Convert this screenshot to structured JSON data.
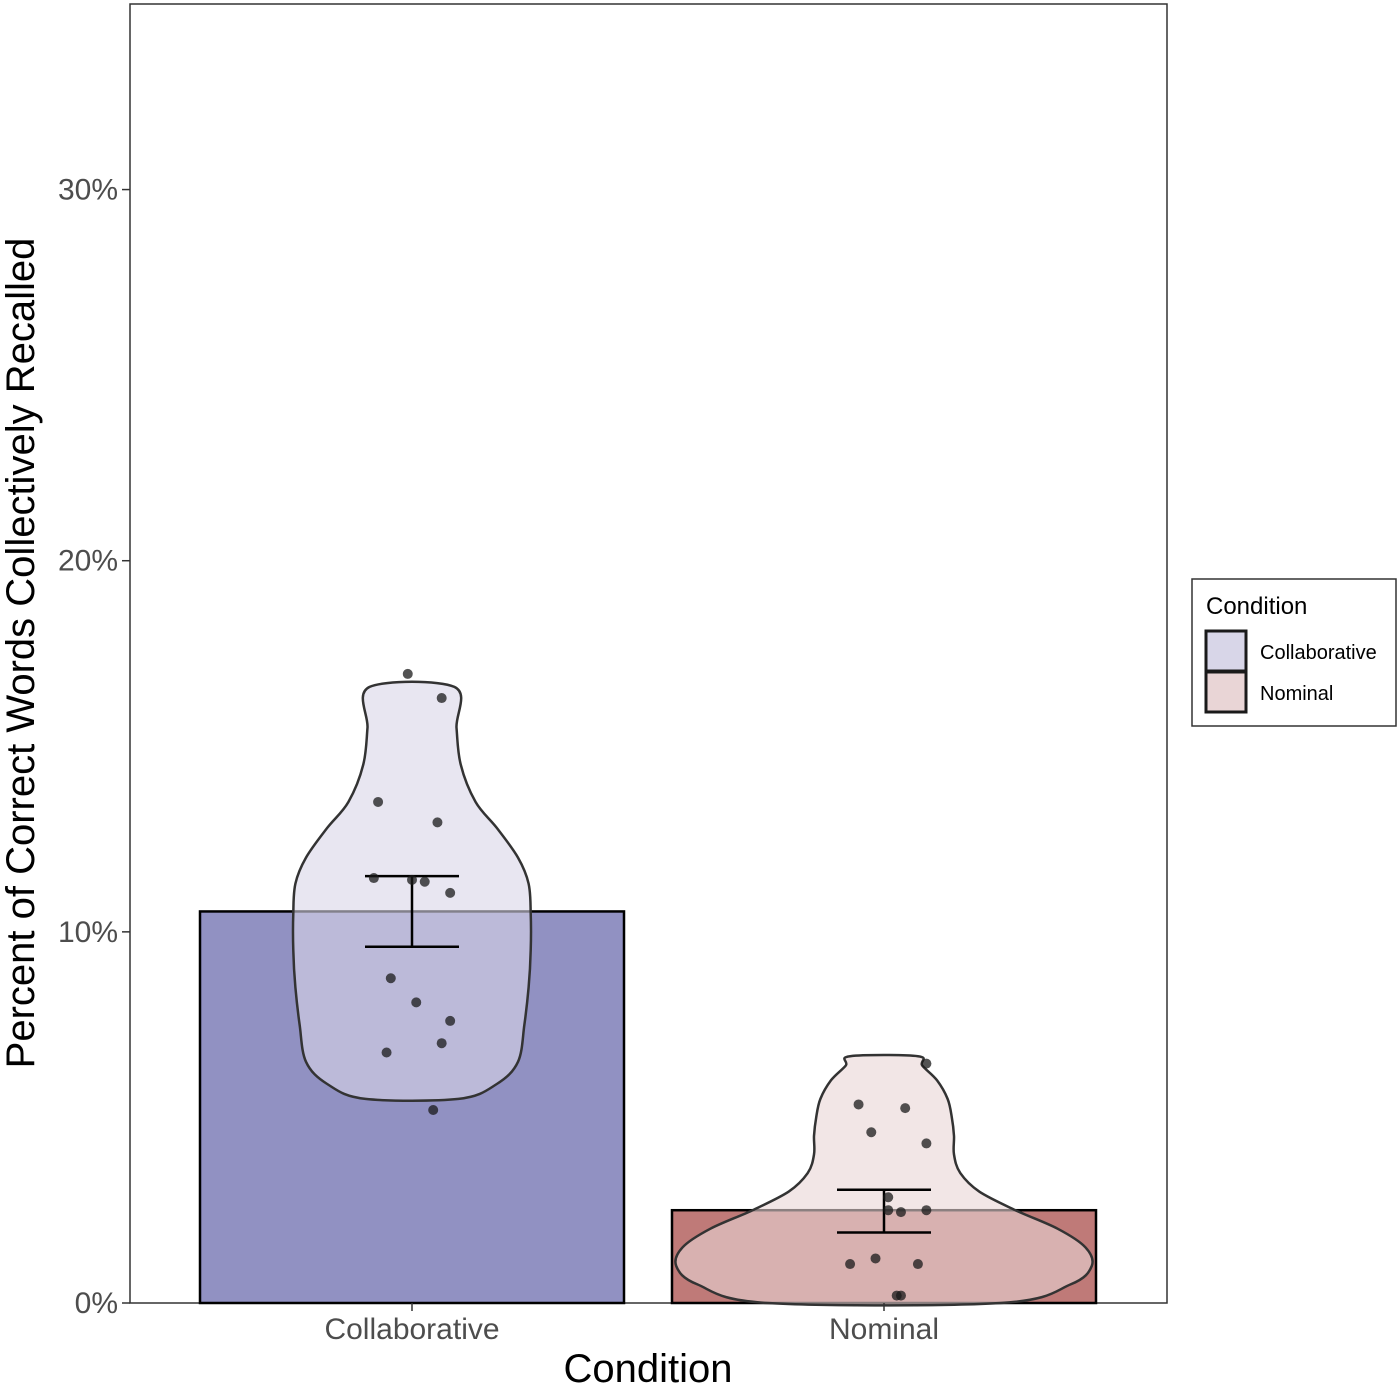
{
  "chart_data": {
    "type": "bar",
    "title": "",
    "xlabel": "Condition",
    "ylabel": "Percent of Correct Words Collectively Recalled",
    "categories": [
      "Collaborative",
      "Nominal"
    ],
    "yticks": [
      "0%",
      "10%",
      "20%",
      "30%"
    ],
    "ytick_values": [
      0,
      10,
      20,
      30
    ],
    "ylim": [
      0,
      35
    ],
    "grid": false,
    "bars": [
      {
        "category": "Collaborative",
        "mean": 10.55,
        "se_low": 9.6,
        "se_high": 11.5,
        "fill": "#9191c2"
      },
      {
        "category": "Nominal",
        "mean": 2.5,
        "se_low": 1.9,
        "se_high": 3.05,
        "fill": "#bf7a78"
      }
    ],
    "violins": [
      {
        "category": "Collaborative",
        "fill": "#d8d6e8",
        "profile": [
          [
            5.5,
            0.22
          ],
          [
            5.9,
            0.4
          ],
          [
            6.5,
            0.5
          ],
          [
            7.5,
            0.53
          ],
          [
            8.5,
            0.55
          ],
          [
            9.5,
            0.56
          ],
          [
            10.5,
            0.56
          ],
          [
            11.3,
            0.55
          ],
          [
            12.0,
            0.5
          ],
          [
            12.8,
            0.4
          ],
          [
            13.5,
            0.3
          ],
          [
            14.5,
            0.23
          ],
          [
            15.5,
            0.21
          ],
          [
            16.6,
            0.2
          ]
        ]
      },
      {
        "category": "Nominal",
        "fill": "#e9d5d6",
        "profile": [
          [
            0.0,
            0.55
          ],
          [
            0.5,
            0.88
          ],
          [
            1.0,
            0.98
          ],
          [
            1.5,
            0.95
          ],
          [
            2.0,
            0.82
          ],
          [
            2.5,
            0.62
          ],
          [
            3.0,
            0.45
          ],
          [
            3.5,
            0.36
          ],
          [
            4.0,
            0.33
          ],
          [
            4.5,
            0.33
          ],
          [
            5.0,
            0.32
          ],
          [
            5.5,
            0.3
          ],
          [
            6.0,
            0.25
          ],
          [
            6.4,
            0.18
          ],
          [
            6.65,
            0.16
          ]
        ]
      }
    ],
    "points": [
      {
        "category": "Collaborative",
        "values": [
          16.95,
          16.3,
          13.5,
          12.95,
          11.45,
          11.4,
          11.35,
          11.05,
          8.75,
          8.1,
          7.6,
          7.0,
          6.75,
          5.2
        ],
        "offsets": [
          -0.01,
          0.07,
          -0.08,
          0.06,
          -0.09,
          0.0,
          0.03,
          0.09,
          -0.05,
          0.01,
          0.09,
          0.07,
          -0.06,
          0.05
        ]
      },
      {
        "category": "Nominal",
        "values": [
          6.45,
          5.35,
          5.25,
          4.6,
          4.3,
          2.85,
          2.5,
          2.45,
          2.5,
          1.2,
          1.05,
          1.05,
          0.2,
          0.2
        ],
        "offsets": [
          0.1,
          -0.06,
          0.05,
          -0.03,
          0.1,
          0.01,
          0.01,
          0.04,
          0.1,
          -0.02,
          -0.08,
          0.08,
          0.03,
          0.04
        ]
      }
    ],
    "legend": {
      "title": "Condition",
      "placement": "right",
      "entries": [
        {
          "label": "Collaborative",
          "fill": "#d8d6e8"
        },
        {
          "label": "Nominal",
          "fill": "#e9d5d6"
        }
      ]
    },
    "colors": {
      "outline": "#000000",
      "violin_outline": "#333333",
      "point": "#1a1a1a"
    }
  }
}
